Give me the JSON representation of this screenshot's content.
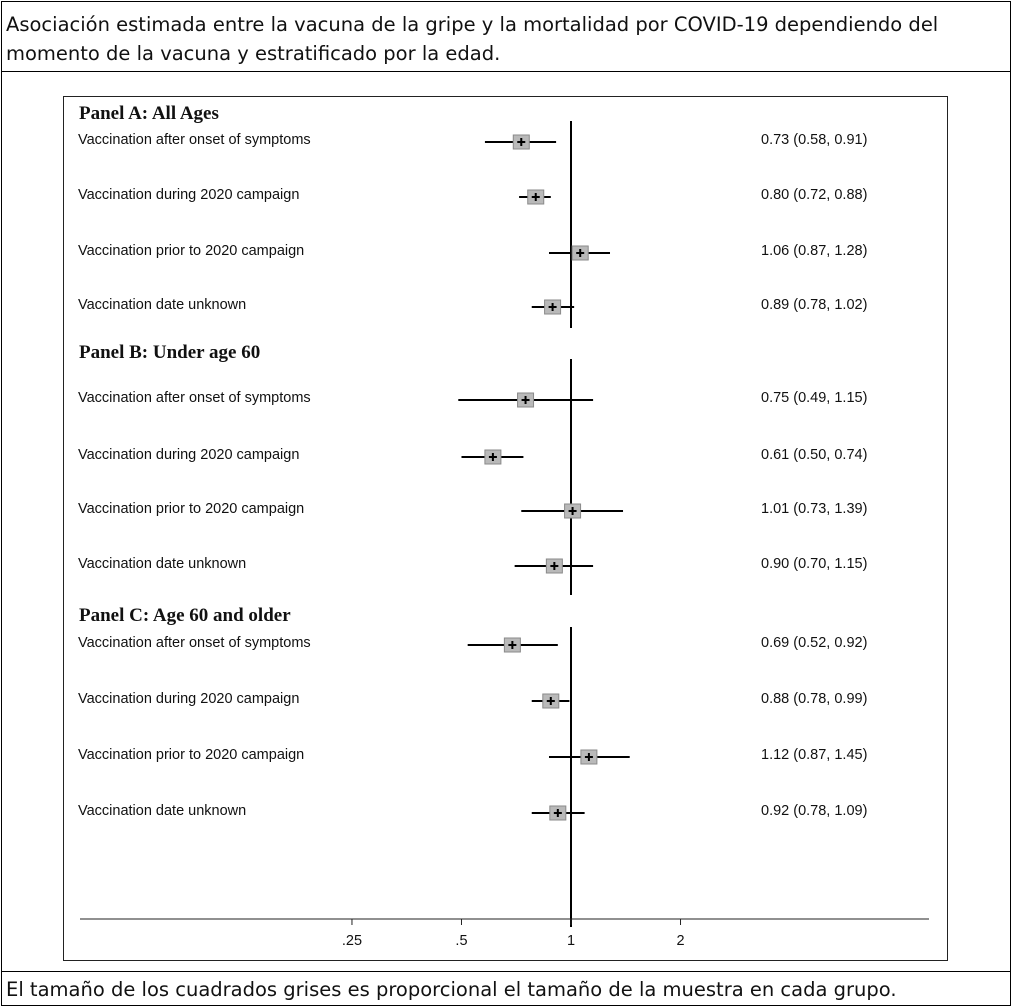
{
  "title": "Asociación estimada entre la vacuna de la gripe y la mortalidad por COVID-19 dependiendo del momento de la vacuna y estratificado por la edad.",
  "footer": "El tamaño de los cuadrados grises es proporcional el tamaño de la muestra en cada grupo.",
  "colors": {
    "ci_line": "#000000",
    "square_fill": "#b9b9b9",
    "ref_line": "#000000"
  },
  "chart_data": {
    "type": "forest",
    "x_scale": "log",
    "xlim": [
      0.17,
      3.3
    ],
    "x_ticks": [
      {
        "value": 0.25,
        "label": ".25"
      },
      {
        "value": 0.5,
        "label": ".5"
      },
      {
        "value": 1,
        "label": "1"
      },
      {
        "value": 2,
        "label": "2"
      }
    ],
    "reference_value": 1,
    "panels": [
      {
        "title": "Panel A: All Ages",
        "rows": [
          {
            "label": "Vaccination after onset of symptoms",
            "est": 0.73,
            "lo": 0.58,
            "hi": 0.91,
            "text": "0.73 (0.58, 0.91)"
          },
          {
            "label": "Vaccination during 2020 campaign",
            "est": 0.8,
            "lo": 0.72,
            "hi": 0.88,
            "text": "0.80 (0.72, 0.88)"
          },
          {
            "label": "Vaccination prior to 2020 campaign",
            "est": 1.06,
            "lo": 0.87,
            "hi": 1.28,
            "text": "1.06 (0.87, 1.28)"
          },
          {
            "label": "Vaccination date unknown",
            "est": 0.89,
            "lo": 0.78,
            "hi": 1.02,
            "text": "0.89 (0.78, 1.02)"
          }
        ]
      },
      {
        "title": "Panel B: Under age 60",
        "rows": [
          {
            "label": "Vaccination after onset of symptoms",
            "est": 0.75,
            "lo": 0.49,
            "hi": 1.15,
            "text": "0.75 (0.49, 1.15)"
          },
          {
            "label": "Vaccination during 2020 campaign",
            "est": 0.61,
            "lo": 0.5,
            "hi": 0.74,
            "text": "0.61 (0.50, 0.74)"
          },
          {
            "label": "Vaccination prior to 2020 campaign",
            "est": 1.01,
            "lo": 0.73,
            "hi": 1.39,
            "text": "1.01 (0.73, 1.39)"
          },
          {
            "label": "Vaccination date unknown",
            "est": 0.9,
            "lo": 0.7,
            "hi": 1.15,
            "text": "0.90 (0.70, 1.15)"
          }
        ]
      },
      {
        "title": "Panel C: Age 60 and older",
        "rows": [
          {
            "label": "Vaccination after onset of symptoms",
            "est": 0.69,
            "lo": 0.52,
            "hi": 0.92,
            "text": "0.69 (0.52, 0.92)"
          },
          {
            "label": "Vaccination during 2020 campaign",
            "est": 0.88,
            "lo": 0.78,
            "hi": 0.99,
            "text": "0.88 (0.78, 0.99)"
          },
          {
            "label": "Vaccination prior to 2020 campaign",
            "est": 1.12,
            "lo": 0.87,
            "hi": 1.45,
            "text": "1.12 (0.87, 1.45)"
          },
          {
            "label": "Vaccination date unknown",
            "est": 0.92,
            "lo": 0.78,
            "hi": 1.09,
            "text": "0.92 (0.78, 1.09)"
          }
        ]
      }
    ]
  }
}
